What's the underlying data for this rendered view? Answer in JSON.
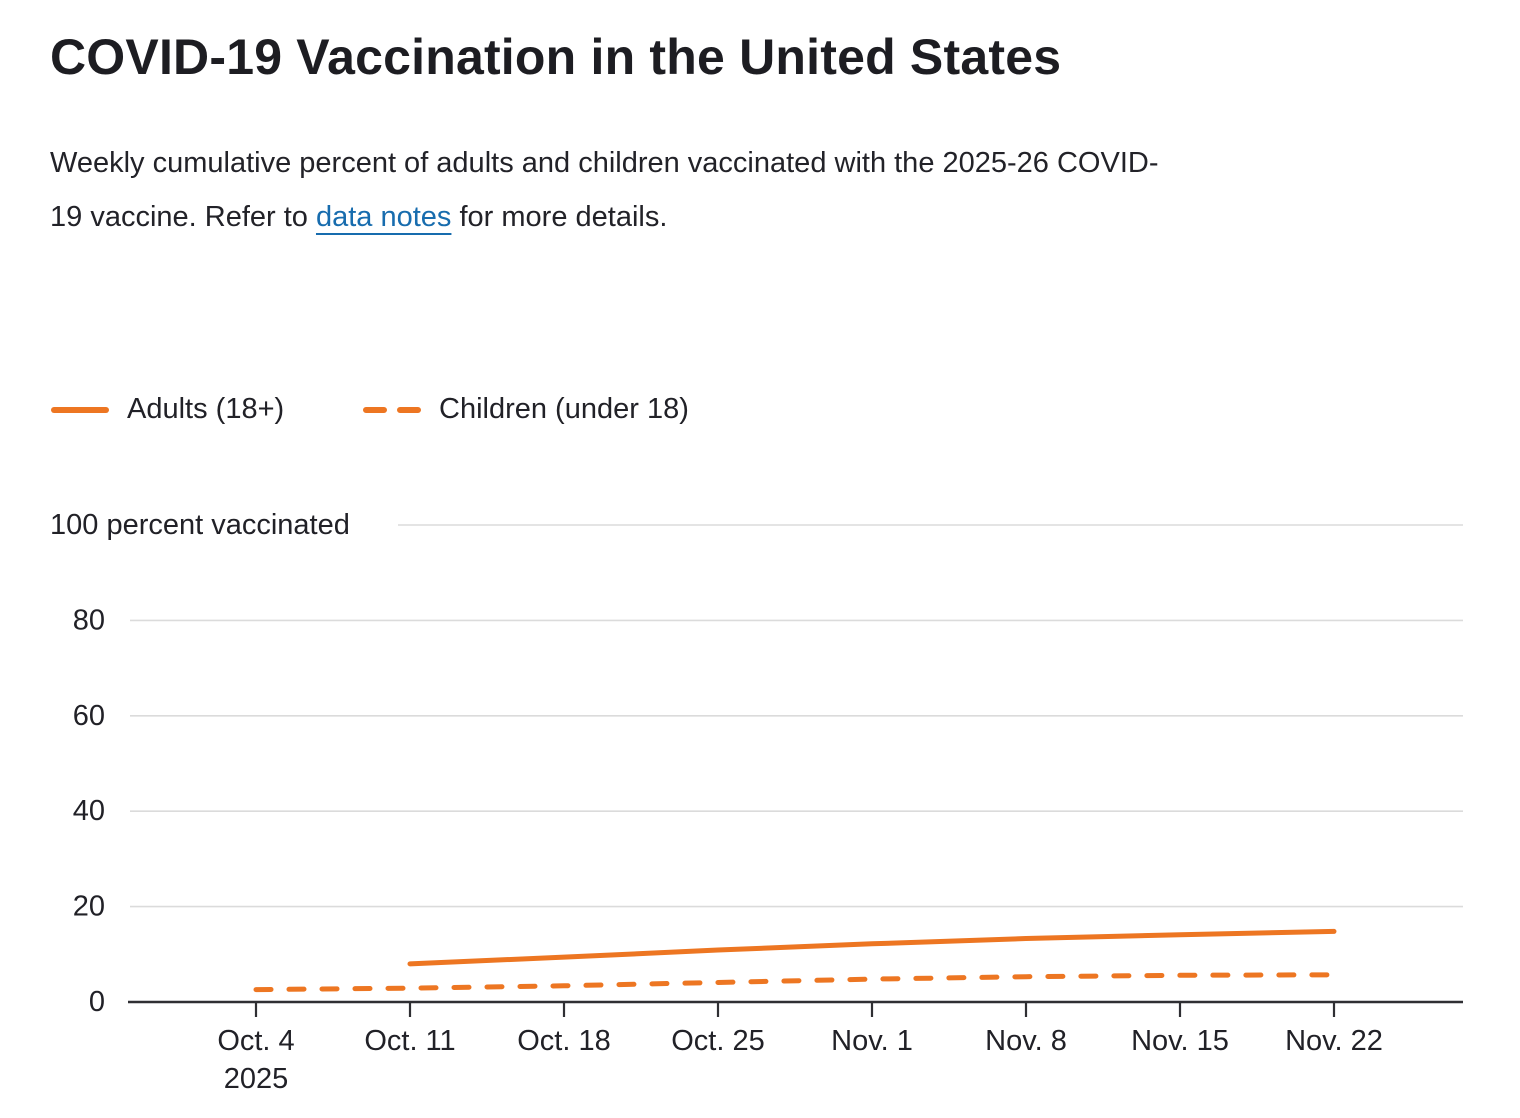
{
  "header": {
    "title": "COVID-19 Vaccination in the United States",
    "subtitle_line1": "Weekly cumulative percent of adults and children vaccinated with the 2025-26 COVID-",
    "subtitle_line2_prefix": "19 vaccine. Refer to ",
    "data_notes_link": "data notes",
    "subtitle_line2_suffix": " for more details."
  },
  "legend": {
    "items": [
      {
        "label": "Adults (18+)",
        "style": "solid"
      },
      {
        "label": "Children (under 18)",
        "style": "dashed"
      }
    ]
  },
  "colors": {
    "series_orange": "#ED7622",
    "link_blue": "#176CAE",
    "axis": "#2F2F33",
    "gridline": "#DBDBDB",
    "label_text": "#212127"
  },
  "chart_data": {
    "type": "line",
    "title": "",
    "ylabel": "100 percent vaccinated",
    "xlabel": "",
    "ylim": [
      0,
      100
    ],
    "yticks": [
      0,
      20,
      40,
      60,
      80
    ],
    "grid": true,
    "legend_position": "top-left",
    "categories": [
      {
        "label": "Oct. 4",
        "sublabel": "2025"
      },
      {
        "label": "Oct. 11"
      },
      {
        "label": "Oct. 18"
      },
      {
        "label": "Oct. 25"
      },
      {
        "label": "Nov. 1"
      },
      {
        "label": "Nov. 8"
      },
      {
        "label": "Nov. 15"
      },
      {
        "label": "Nov. 22"
      }
    ],
    "series": [
      {
        "name": "Adults (18+)",
        "line_style": "solid",
        "values": [
          null,
          8.0,
          9.4,
          10.9,
          12.2,
          13.3,
          14.1,
          14.8
        ]
      },
      {
        "name": "Children (under 18)",
        "line_style": "dashed",
        "values": [
          2.6,
          2.9,
          3.4,
          4.1,
          4.8,
          5.3,
          5.6,
          5.7
        ]
      }
    ]
  }
}
